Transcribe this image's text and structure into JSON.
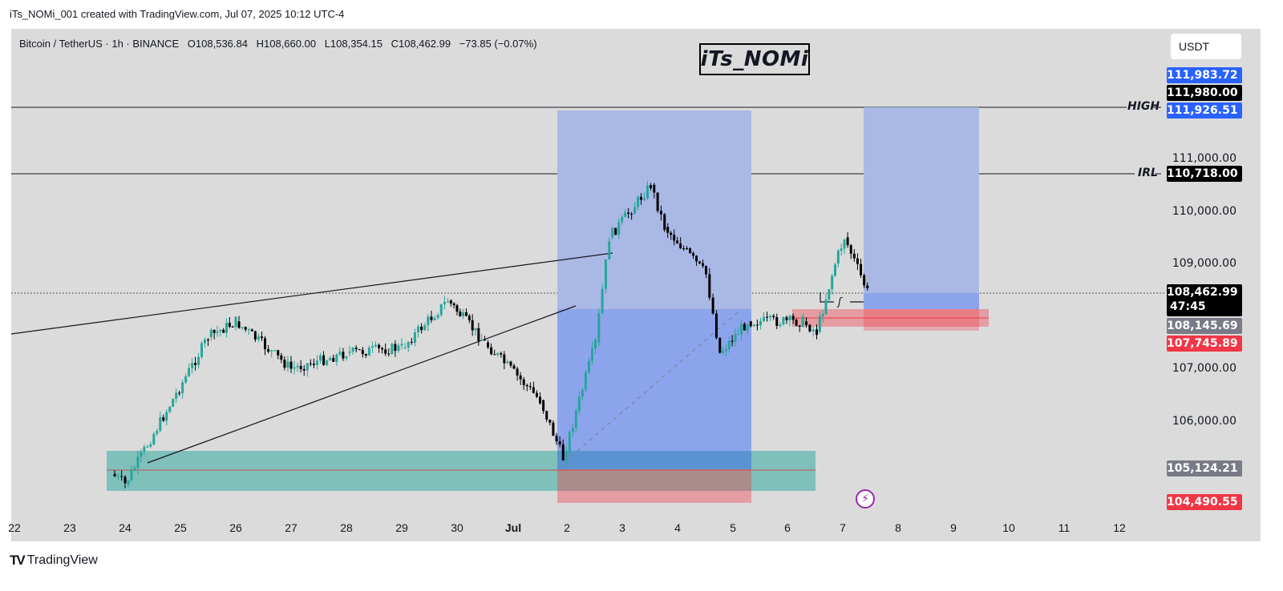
{
  "caption": "iTs_NOMi_001 created with TradingView.com, Jul 07, 2025 10:12 UTC-4",
  "legend": {
    "symbol": "Bitcoin / TetherUS · 1h · BINANCE",
    "open": "O108,536.84",
    "high": "H108,660.00",
    "low": "L108,354.15",
    "close": "C108,462.99",
    "change": "−73.85 (−0.07%)"
  },
  "watermark": "iTs_NOMi",
  "currency_button": "USDT",
  "price_axis": {
    "ticks": [
      "111,000.00",
      "110,000.00",
      "109,000.00",
      "107,000.00",
      "106,000.00"
    ],
    "tags": {
      "tp1": {
        "value": "111,983.72",
        "color": "#2962ff"
      },
      "high_line": {
        "value": "111,980.00",
        "color": "#000000"
      },
      "tp2": {
        "value": "111,926.51",
        "color": "#2962ff"
      },
      "irl": {
        "value": "110,718.00",
        "color": "#000000"
      },
      "last_price": {
        "value": "108,462.99",
        "countdown": "47:45",
        "color": "#000000"
      },
      "entry": {
        "value": "108,145.69",
        "color": "#787b86"
      },
      "stop": {
        "value": "107,745.89",
        "color": "#f23645"
      },
      "entry2": {
        "value": "105,124.21",
        "color": "#787b86"
      },
      "stop2": {
        "value": "104,490.55",
        "color": "#f23645"
      }
    }
  },
  "line_labels": {
    "high": "HIGH",
    "irl": "IRL"
  },
  "time_axis": {
    "ticks": [
      "22",
      "23",
      "24",
      "25",
      "26",
      "27",
      "28",
      "29",
      "30",
      "Jul",
      "2",
      "3",
      "4",
      "5",
      "6",
      "7",
      "8",
      "9",
      "10",
      "11",
      "12"
    ]
  },
  "footer": {
    "logo": "TV",
    "brand": "TradingView"
  },
  "colors": {
    "background": "#dbdbdb",
    "up_candle": "#26a69a",
    "down_candle": "#000000",
    "target_zone": "#6b8cff",
    "stop_zone": "#f23645",
    "demand_zone": "#26a69a"
  },
  "chart_data": {
    "type": "candlestick",
    "title": "Bitcoin / TetherUS · 1h · BINANCE",
    "xlabel": "",
    "ylabel": "USDT",
    "ylim": [
      104300,
      112500
    ],
    "x_range": [
      "Jun 22",
      "Jul 12"
    ],
    "grid": false,
    "ohlc_last": {
      "open": 108536.84,
      "high": 108660.0,
      "low": 108354.15,
      "close": 108462.99,
      "change": -73.85,
      "change_pct": -0.07
    },
    "horizontal_lines": [
      {
        "label": "HIGH",
        "price": 111980.0
      },
      {
        "label": "IRL",
        "price": 110718.0
      },
      {
        "label": "last",
        "price": 108462.99,
        "style": "dotted"
      }
    ],
    "approx_price_path": [
      {
        "date": "Jun 23 18:00",
        "price": 105000
      },
      {
        "date": "Jun 24 00:00",
        "price": 104800
      },
      {
        "date": "Jun 25 12:00",
        "price": 107600
      },
      {
        "date": "Jun 26 00:00",
        "price": 107900
      },
      {
        "date": "Jun 27 00:00",
        "price": 107000
      },
      {
        "date": "Jun 28 00:00",
        "price": 107300
      },
      {
        "date": "Jun 29 00:00",
        "price": 107400
      },
      {
        "date": "Jun 29 20:00",
        "price": 108300
      },
      {
        "date": "Jun 30 12:00",
        "price": 107500
      },
      {
        "date": "Jul 01 12:00",
        "price": 106400
      },
      {
        "date": "Jul 01 22:00",
        "price": 105300
      },
      {
        "date": "Jul 02 12:00",
        "price": 107500
      },
      {
        "date": "Jul 02 18:00",
        "price": 109500
      },
      {
        "date": "Jul 03 12:00",
        "price": 110500
      },
      {
        "date": "Jul 03 18:00",
        "price": 109700
      },
      {
        "date": "Jul 04 12:00",
        "price": 108800
      },
      {
        "date": "Jul 04 18:00",
        "price": 107300
      },
      {
        "date": "Jul 05 06:00",
        "price": 107900
      },
      {
        "date": "Jul 06 06:00",
        "price": 107900
      },
      {
        "date": "Jul 06 12:00",
        "price": 107700
      },
      {
        "date": "Jul 06 20:00",
        "price": 109000
      },
      {
        "date": "Jul 07 00:00",
        "price": 109500
      },
      {
        "date": "Jul 07 10:00",
        "price": 108463
      }
    ],
    "positions": [
      {
        "type": "long",
        "entry": 105124.21,
        "stop": 104490.55,
        "target": 111926.51,
        "from": "Jul 01 22:00",
        "to": "Jul 05 08:00"
      },
      {
        "type": "long",
        "entry": 108145.69,
        "stop": 107745.89,
        "target": 111983.72,
        "from": "Jul 07 10:00",
        "to": "Jul 09 08:00"
      }
    ],
    "zones": [
      {
        "type": "demand",
        "from": "Jun 23 18:00",
        "to": "Jul 06 12:00",
        "low": 104600,
        "high": 105400
      },
      {
        "type": "supply_ob",
        "from": "Jul 06 02:00",
        "to": "Jul 09 12:00",
        "low": 107850,
        "high": 108150
      }
    ],
    "trendlines": [
      {
        "name": "upper wedge",
        "from": {
          "x": "Jun 22",
          "price": 107600
        },
        "to": {
          "x": "Jul 02 18:00",
          "price": 109200
        }
      },
      {
        "name": "lower wedge",
        "from": {
          "x": "Jun 24 12:00",
          "price": 105100
        },
        "to": {
          "x": "Jul 02 12:00",
          "price": 108300
        }
      }
    ]
  }
}
